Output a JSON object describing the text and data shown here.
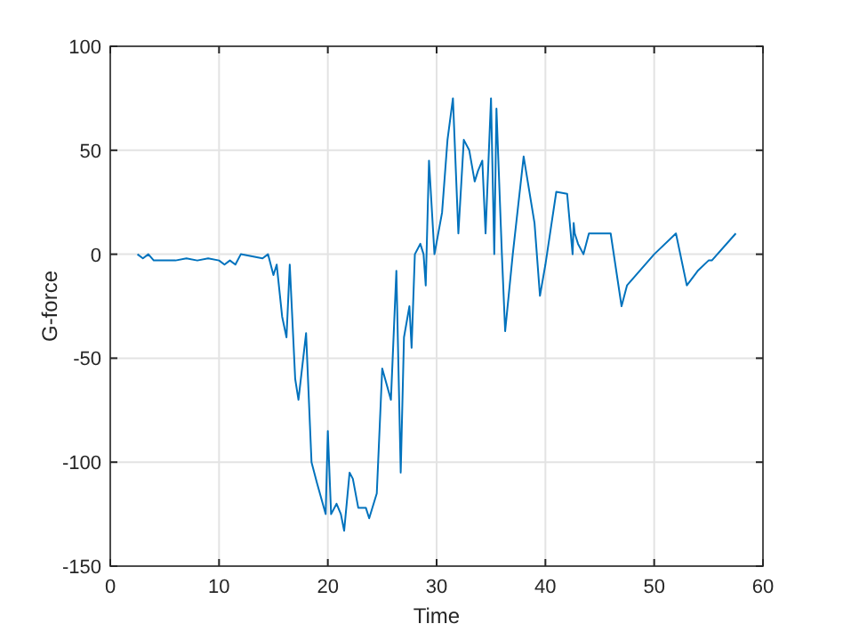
{
  "chart_data": {
    "type": "line",
    "xlabel": "Time",
    "ylabel": "G-force",
    "xlim": [
      0,
      60
    ],
    "ylim": [
      -150,
      100
    ],
    "xticks": [
      0,
      10,
      20,
      30,
      40,
      50,
      60
    ],
    "yticks": [
      -150,
      -100,
      -50,
      0,
      50,
      100
    ],
    "grid": true,
    "series": [
      {
        "color": "#0072bd",
        "x": [
          2.5,
          3,
          3.5,
          4,
          6,
          7,
          8,
          9,
          10,
          10.5,
          11,
          11.5,
          12,
          14,
          14.5,
          15,
          15.3,
          15.8,
          16.2,
          16.5,
          17,
          17.3,
          18,
          18.5,
          19,
          19.8,
          20,
          20.3,
          20.8,
          21.2,
          21.5,
          22,
          22.3,
          22.8,
          23.5,
          23.8,
          24.5,
          25,
          25.8,
          26.3,
          26.7,
          27,
          27.5,
          27.7,
          28,
          28.5,
          28.8,
          29,
          29.3,
          29.8,
          30.5,
          31,
          31.5,
          32,
          32.5,
          33,
          33.5,
          33.8,
          34.2,
          34.5,
          35,
          35.3,
          35.5,
          36,
          36.3,
          37,
          38,
          39,
          39.5,
          40,
          41,
          42,
          42.5,
          42.6,
          42.7,
          43,
          43.5,
          44,
          46,
          47,
          47.5,
          50,
          52,
          53,
          54,
          55,
          55.3,
          57.5
        ],
        "values": [
          0,
          -2,
          0,
          -3,
          -3,
          -2,
          -3,
          -2,
          -3,
          -5,
          -3,
          -5,
          0,
          -2,
          0,
          -10,
          -5,
          -30,
          -40,
          -5,
          -60,
          -70,
          -38,
          -100,
          -110,
          -125,
          -85,
          -125,
          -120,
          -125,
          -133,
          -105,
          -108,
          -122,
          -122,
          -127,
          -115,
          -55,
          -70,
          -8,
          -105,
          -40,
          -25,
          -45,
          0,
          5,
          0,
          -15,
          45,
          0,
          20,
          55,
          75,
          10,
          55,
          50,
          35,
          40,
          45,
          10,
          75,
          0,
          70,
          0,
          -37,
          0,
          47,
          15,
          -20,
          -5,
          30,
          29,
          0,
          15,
          10,
          5,
          0,
          10,
          10,
          -25,
          -15,
          0,
          10,
          -15,
          -8,
          -3,
          -3,
          10
        ]
      }
    ]
  }
}
